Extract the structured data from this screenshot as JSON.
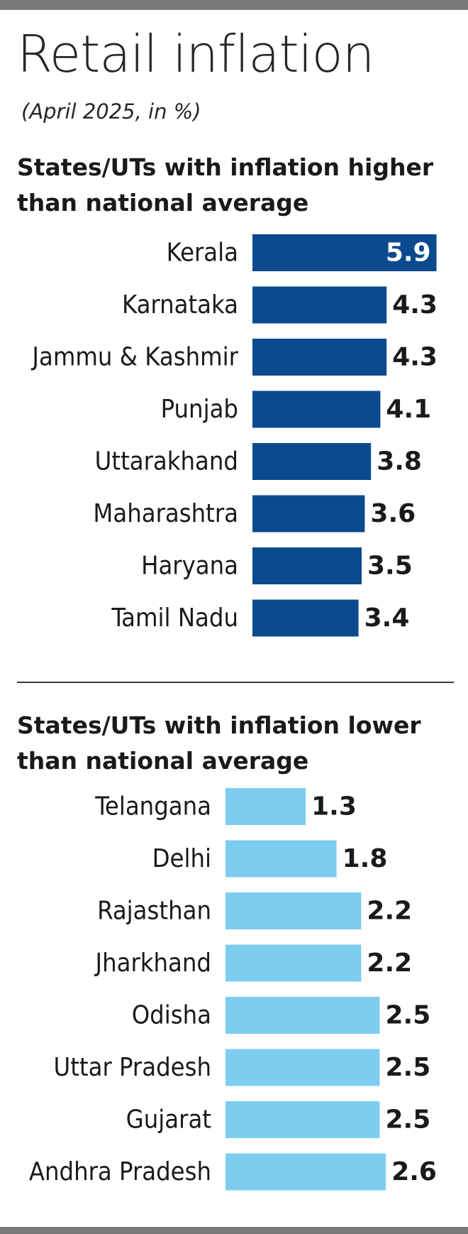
{
  "title": "Retail inflation",
  "subtitle": "(April 2025, in %)",
  "colors": {
    "higher": "#0b4a8f",
    "lower": "#7dcdf1"
  },
  "chart_data": [
    {
      "type": "bar",
      "orientation": "horizontal",
      "title": "States/UTs with inflation higher than national average",
      "categories": [
        "Kerala",
        "Karnataka",
        "Jammu & Kashmir",
        "Punjab",
        "Uttarakhand",
        "Maharashtra",
        "Haryana",
        "Tamil Nadu"
      ],
      "values": [
        5.9,
        4.3,
        4.3,
        4.1,
        3.8,
        3.6,
        3.5,
        3.4
      ],
      "value_labels": [
        "5.9",
        "4.3",
        "4.3",
        "4.1",
        "3.8",
        "3.6",
        "3.5",
        "3.4"
      ],
      "grid": false
    },
    {
      "type": "bar",
      "orientation": "horizontal",
      "title": "States/UTs with inflation lower than national average",
      "categories": [
        "Telangana",
        "Delhi",
        "Rajasthan",
        "Jharkhand",
        "Odisha",
        "Uttar Pradesh",
        "Gujarat",
        "Andhra Pradesh"
      ],
      "values": [
        1.3,
        1.8,
        2.2,
        2.2,
        2.5,
        2.5,
        2.5,
        2.6
      ],
      "value_labels": [
        "1.3",
        "1.8",
        "2.2",
        "2.2",
        "2.5",
        "2.5",
        "2.5",
        "2.6"
      ],
      "grid": false
    }
  ]
}
